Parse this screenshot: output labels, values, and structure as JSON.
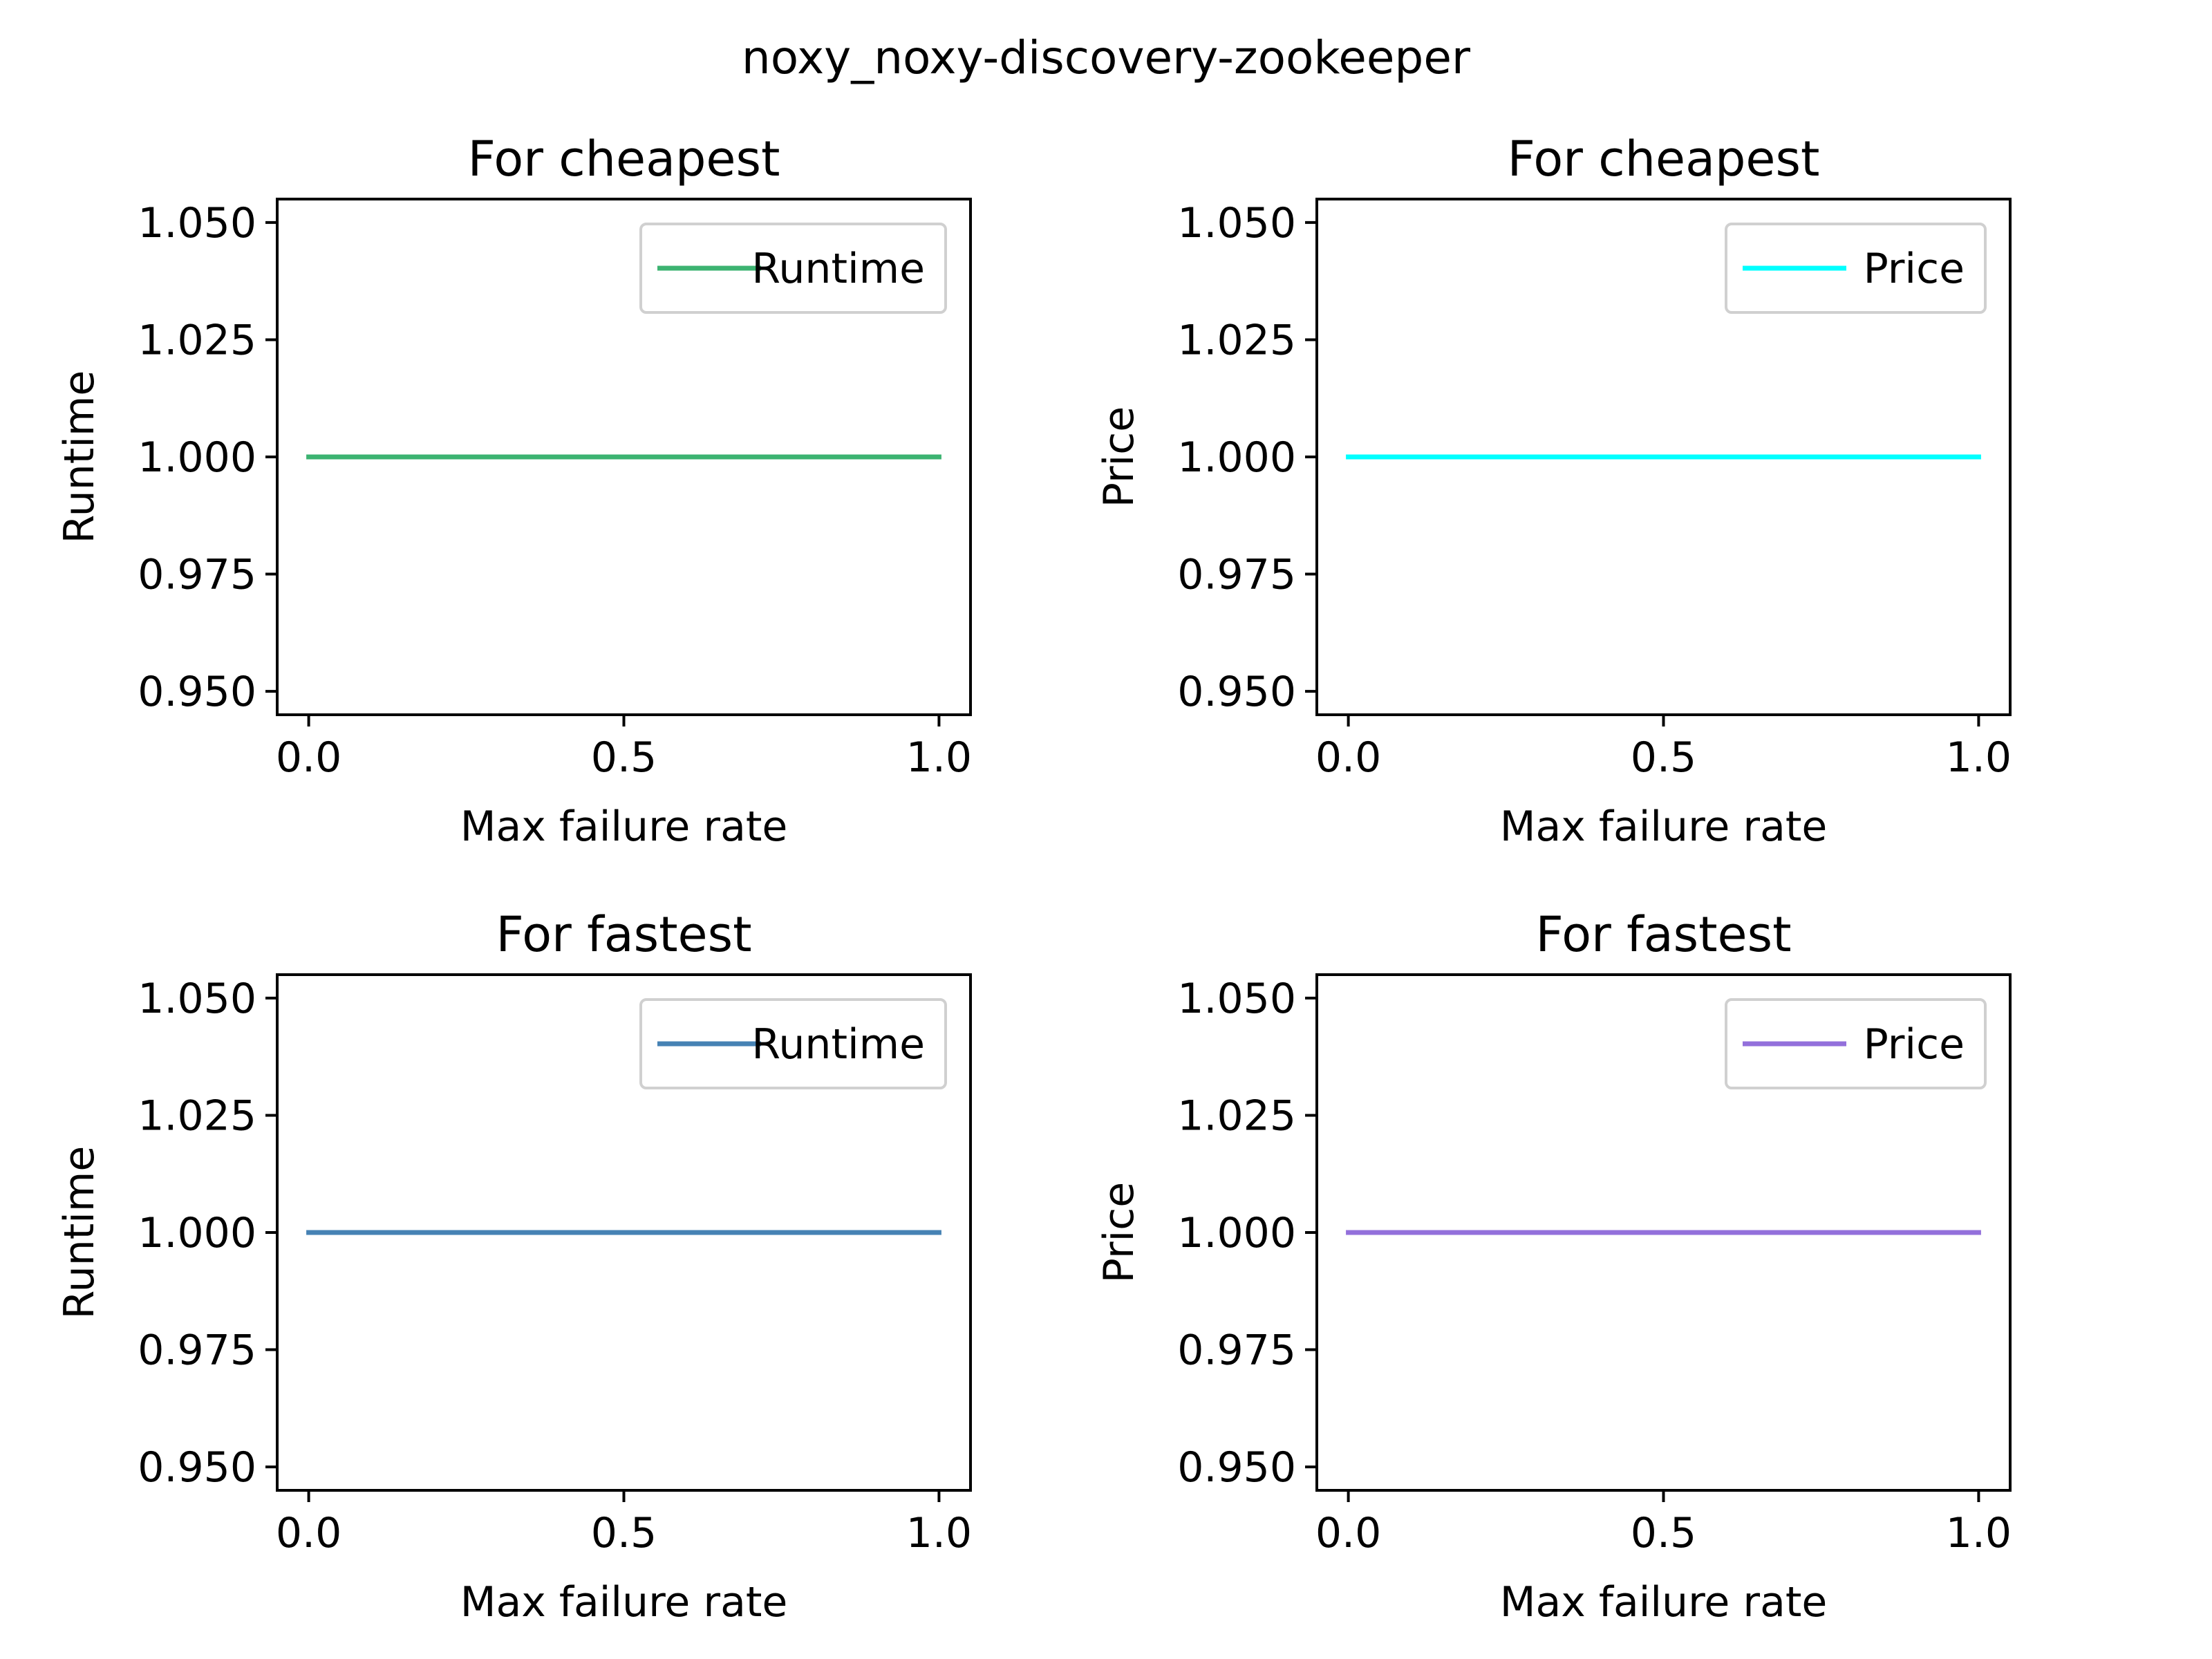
{
  "figure": {
    "suptitle": "noxy_noxy-discovery-zookeeper"
  },
  "chart_data": [
    {
      "type": "line",
      "title": "For cheapest",
      "xlabel": "Max failure rate",
      "ylabel": "Runtime",
      "xlim": [
        -0.05,
        1.05
      ],
      "ylim": [
        0.945,
        1.055
      ],
      "xticks": [
        0.0,
        0.5,
        1.0
      ],
      "xtick_labels": [
        "0.0",
        "0.5",
        "1.0"
      ],
      "yticks": [
        0.95,
        0.975,
        1.0,
        1.025,
        1.05
      ],
      "ytick_labels": [
        "0.950",
        "0.975",
        "1.000",
        "1.025",
        "1.050"
      ],
      "grid": false,
      "legend_position": "top-right",
      "series": [
        {
          "name": "Runtime",
          "color": "#3cb371",
          "x": [
            0.0,
            1.0
          ],
          "y": [
            1.0,
            1.0
          ]
        }
      ]
    },
    {
      "type": "line",
      "title": "For cheapest",
      "xlabel": "Max failure rate",
      "ylabel": "Price",
      "xlim": [
        -0.05,
        1.05
      ],
      "ylim": [
        0.945,
        1.055
      ],
      "xticks": [
        0.0,
        0.5,
        1.0
      ],
      "xtick_labels": [
        "0.0",
        "0.5",
        "1.0"
      ],
      "yticks": [
        0.95,
        0.975,
        1.0,
        1.025,
        1.05
      ],
      "ytick_labels": [
        "0.950",
        "0.975",
        "1.000",
        "1.025",
        "1.050"
      ],
      "grid": false,
      "legend_position": "top-right",
      "series": [
        {
          "name": "Price",
          "color": "#00ffff",
          "x": [
            0.0,
            1.0
          ],
          "y": [
            1.0,
            1.0
          ]
        }
      ]
    },
    {
      "type": "line",
      "title": "For fastest",
      "xlabel": "Max failure rate",
      "ylabel": "Runtime",
      "xlim": [
        -0.05,
        1.05
      ],
      "ylim": [
        0.945,
        1.055
      ],
      "xticks": [
        0.0,
        0.5,
        1.0
      ],
      "xtick_labels": [
        "0.0",
        "0.5",
        "1.0"
      ],
      "yticks": [
        0.95,
        0.975,
        1.0,
        1.025,
        1.05
      ],
      "ytick_labels": [
        "0.950",
        "0.975",
        "1.000",
        "1.025",
        "1.050"
      ],
      "grid": false,
      "legend_position": "top-right",
      "series": [
        {
          "name": "Runtime",
          "color": "#4682b4",
          "x": [
            0.0,
            1.0
          ],
          "y": [
            1.0,
            1.0
          ]
        }
      ]
    },
    {
      "type": "line",
      "title": "For fastest",
      "xlabel": "Max failure rate",
      "ylabel": "Price",
      "xlim": [
        -0.05,
        1.05
      ],
      "ylim": [
        0.945,
        1.055
      ],
      "xticks": [
        0.0,
        0.5,
        1.0
      ],
      "xtick_labels": [
        "0.0",
        "0.5",
        "1.0"
      ],
      "yticks": [
        0.95,
        0.975,
        1.0,
        1.025,
        1.05
      ],
      "ytick_labels": [
        "0.950",
        "0.975",
        "1.000",
        "1.025",
        "1.050"
      ],
      "grid": false,
      "legend_position": "top-right",
      "series": [
        {
          "name": "Price",
          "color": "#9370db",
          "x": [
            0.0,
            1.0
          ],
          "y": [
            1.0,
            1.0
          ]
        }
      ]
    }
  ]
}
